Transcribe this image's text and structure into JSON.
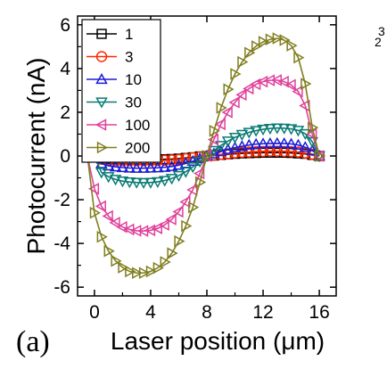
{
  "chart_data": {
    "type": "line",
    "panel_label": "(a)",
    "xlabel": "Laser position (μm)",
    "ylabel": "Photocurrent (nA)",
    "xlim": [
      -1.2,
      17.2
    ],
    "ylim": [
      -6.4,
      6.4
    ],
    "xticks": [
      0,
      4,
      8,
      12,
      16
    ],
    "yticks": [
      -6,
      -4,
      -2,
      0,
      2,
      4,
      6
    ],
    "grid": false,
    "legend_position": "top-left",
    "x": [
      -0.5,
      0,
      0.5,
      1,
      1.5,
      2,
      2.5,
      3,
      3.5,
      4,
      4.5,
      5,
      5.5,
      6,
      6.5,
      7,
      7.5,
      8,
      8.5,
      9,
      9.5,
      10,
      10.5,
      11,
      11.5,
      12,
      12.5,
      13,
      13.5,
      14,
      14.5,
      15,
      15.5,
      16
    ],
    "series": [
      {
        "name": "1",
        "color": "#000000",
        "marker": "square",
        "values": [
          0,
          0,
          -0.12,
          -0.14,
          -0.15,
          -0.16,
          -0.16,
          -0.16,
          -0.16,
          -0.16,
          -0.16,
          -0.15,
          -0.14,
          -0.12,
          -0.09,
          -0.06,
          -0.02,
          0,
          0.02,
          0.05,
          0.08,
          0.1,
          0.12,
          0.13,
          0.14,
          0.15,
          0.15,
          0.15,
          0.15,
          0.14,
          0.12,
          0.1,
          0.05,
          0
        ]
      },
      {
        "name": "3",
        "color": "#ff2a00",
        "marker": "circle",
        "values": [
          0,
          0,
          -0.15,
          -0.19,
          -0.21,
          -0.22,
          -0.22,
          -0.22,
          -0.22,
          -0.22,
          -0.21,
          -0.2,
          -0.18,
          -0.16,
          -0.12,
          -0.08,
          -0.04,
          0,
          0.03,
          0.07,
          0.1,
          0.14,
          0.17,
          0.18,
          0.2,
          0.21,
          0.22,
          0.22,
          0.21,
          0.2,
          0.18,
          0.13,
          0.08,
          0
        ]
      },
      {
        "name": "10",
        "color": "#1c1cd6",
        "marker": "triangle-up",
        "values": [
          0,
          0,
          -0.35,
          -0.45,
          -0.5,
          -0.53,
          -0.55,
          -0.56,
          -0.56,
          -0.55,
          -0.54,
          -0.52,
          -0.48,
          -0.42,
          -0.34,
          -0.24,
          -0.12,
          0,
          0.1,
          0.2,
          0.3,
          0.38,
          0.44,
          0.5,
          0.54,
          0.56,
          0.57,
          0.58,
          0.57,
          0.55,
          0.5,
          0.4,
          0.25,
          0
        ]
      },
      {
        "name": "30",
        "color": "#0a7b74",
        "marker": "triangle-down",
        "values": [
          0,
          0,
          -0.75,
          -0.95,
          -1.07,
          -1.15,
          -1.19,
          -1.21,
          -1.22,
          -1.21,
          -1.18,
          -1.12,
          -1.03,
          -0.9,
          -0.72,
          -0.5,
          -0.25,
          0,
          0.25,
          0.48,
          0.68,
          0.85,
          0.98,
          1.08,
          1.16,
          1.22,
          1.26,
          1.28,
          1.27,
          1.24,
          1.17,
          1.02,
          0.65,
          0
        ]
      },
      {
        "name": "100",
        "color": "#e0409a",
        "marker": "triangle-left",
        "values": [
          0,
          -1.5,
          -2.3,
          -2.75,
          -3.05,
          -3.25,
          -3.36,
          -3.42,
          -3.43,
          -3.4,
          -3.31,
          -3.15,
          -2.9,
          -2.55,
          -2.1,
          -1.55,
          -0.8,
          0,
          0.75,
          1.45,
          2.0,
          2.45,
          2.8,
          3.08,
          3.28,
          3.4,
          3.46,
          3.47,
          3.4,
          3.25,
          2.95,
          2.3,
          1.0,
          0
        ]
      },
      {
        "name": "200",
        "color": "#807e1e",
        "marker": "triangle-right",
        "values": [
          0,
          -2.6,
          -3.7,
          -4.35,
          -4.8,
          -5.1,
          -5.28,
          -5.35,
          -5.35,
          -5.28,
          -5.12,
          -4.85,
          -4.45,
          -3.9,
          -3.2,
          -2.35,
          -1.2,
          0,
          1.15,
          2.2,
          3.05,
          3.75,
          4.3,
          4.72,
          5.02,
          5.22,
          5.33,
          5.38,
          5.3,
          5.05,
          4.5,
          3.3,
          1.3,
          0
        ]
      }
    ]
  },
  "edge_text": "2",
  "edge_text_2": "3"
}
